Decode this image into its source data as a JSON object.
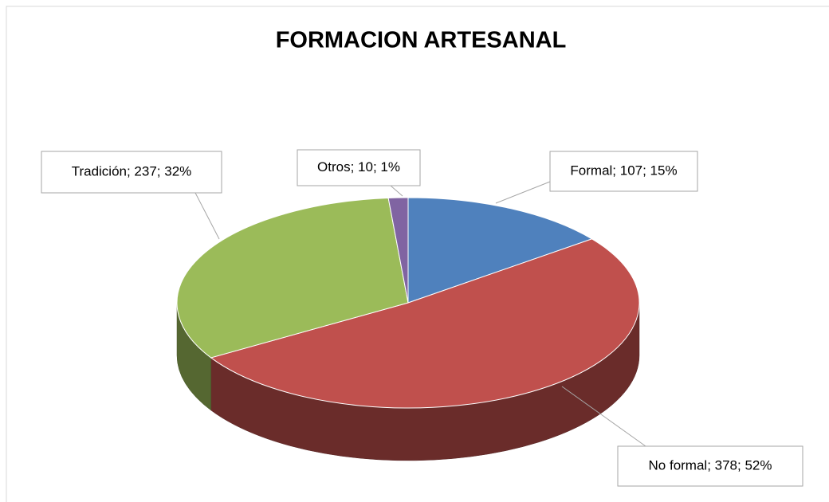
{
  "chart_data": {
    "type": "pie3d",
    "title": "FORMACION ARTESANAL",
    "values": [
      107,
      378,
      237,
      10
    ],
    "value_labels": [
      "Formal; 107; 15%",
      "No formal; 378; 52%",
      "Tradición; 237; 32%",
      "Otros; 10; 1%"
    ],
    "colors": [
      "#4f81bd",
      "#c0504d",
      "#9bbb59",
      "#8064a2"
    ]
  }
}
